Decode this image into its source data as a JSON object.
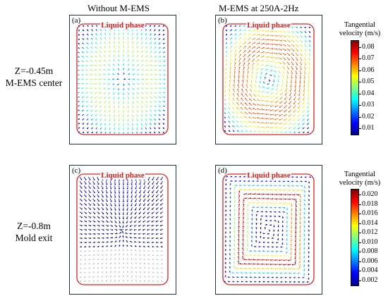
{
  "columns": {
    "left": "Without M-EMS",
    "right": "M-EMS at 250A-2Hz"
  },
  "rows": [
    {
      "line1": "Z=-0.45m",
      "line2": "M-EMS center"
    },
    {
      "line1": "Z=-0.8m",
      "line2": "Mold exit"
    }
  ],
  "panels": [
    {
      "label": "(a)",
      "phase_label": "Liquid phase",
      "field": "weak-radial"
    },
    {
      "label": "(b)",
      "phase_label": "Liquid phase",
      "field": "swirl"
    },
    {
      "label": "(c)",
      "phase_label": "Liquid phase",
      "field": "inward-flow"
    },
    {
      "label": "(d)",
      "phase_label": "Liquid phase",
      "field": "ring-circulation"
    }
  ],
  "colorbars": [
    {
      "title": "Tangential velocity (m/s)",
      "ticks": [
        "0.08",
        "0.07",
        "0.06",
        "0.05",
        "0.04",
        "0.03",
        "0.02",
        "0.01"
      ]
    },
    {
      "title": "Tangential velocity (m/s)",
      "ticks": [
        "0.020",
        "0.018",
        "0.016",
        "0.014",
        "0.012",
        "0.010",
        "0.008",
        "0.006",
        "0.004",
        "0.002"
      ]
    }
  ],
  "colors": {
    "frame": "#1f2d5c",
    "liquid_boundary": "#e0231f",
    "liquid_label": "#d8221e"
  }
}
